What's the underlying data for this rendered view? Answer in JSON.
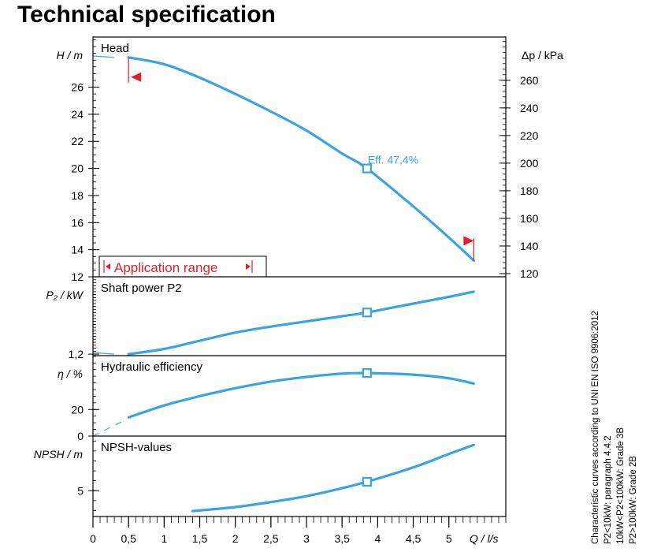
{
  "page": {
    "title": "Technical specification"
  },
  "notes": {
    "lines": [
      "Characteristic curves according to UNI EN ISO 9906:2012",
      "P2<10kW:  paragraph 4.4.2",
      "10kW<P2<100kW: Grade 3B",
      "P2>100kW: Grade 2B"
    ]
  },
  "colors": {
    "curve": "#3aa3e3",
    "marker": "#e41e26",
    "frame": "#000000"
  },
  "chart_data": {
    "type": "line",
    "x_axis": {
      "label": "Q / l/s",
      "range": [
        0,
        5.8
      ],
      "ticks": [
        0,
        0.5,
        1,
        1.5,
        2,
        2.5,
        3,
        3.5,
        4,
        4.5,
        5
      ],
      "tick_labels": [
        "0",
        "0,5",
        "1",
        "1,5",
        "2",
        "2,5",
        "3",
        "3,5",
        "4",
        "4,5",
        "5"
      ]
    },
    "duty_point": {
      "q": 3.85
    },
    "panels": [
      {
        "id": "head",
        "title": "Head",
        "ylabel": "H / m",
        "ylim": [
          12,
          29.7
        ],
        "yticks": [
          12,
          14,
          16,
          18,
          20,
          22,
          24,
          26
        ],
        "right_axis": {
          "label": "Δp / kPa",
          "range": [
            117.7,
            291.3
          ],
          "ticks": [
            120,
            140,
            160,
            180,
            200,
            220,
            240,
            260
          ]
        },
        "series": {
          "x": [
            0.5,
            1.0,
            1.5,
            2.0,
            2.5,
            3.0,
            3.5,
            3.85,
            4.5,
            5.0,
            5.35
          ],
          "y": [
            28.2,
            27.7,
            26.7,
            25.5,
            24.2,
            22.8,
            21.1,
            20.0,
            17.2,
            14.9,
            13.2
          ]
        },
        "lead_in": {
          "x": [
            0,
            0.3
          ],
          "y": [
            28.3,
            28.2
          ]
        },
        "duty_label": "Eff.  47,4%",
        "application_range": {
          "label": "Application range",
          "q_min": 0.5,
          "q_max": 5.35
        }
      },
      {
        "id": "power",
        "title": "Shaft power P2",
        "ylabel": "P₂ / kW",
        "ylim": [
          1.19,
          1.72
        ],
        "yticks": [
          1.2
        ],
        "ytick_labels": [
          "1,2"
        ],
        "series": {
          "x": [
            0.5,
            1.0,
            1.5,
            2.0,
            2.5,
            3.0,
            3.5,
            3.85,
            4.5,
            5.0,
            5.35
          ],
          "y": [
            1.2,
            1.235,
            1.29,
            1.345,
            1.385,
            1.42,
            1.455,
            1.48,
            1.54,
            1.585,
            1.62
          ]
        },
        "lead_in": {
          "x": [
            0,
            0.3
          ],
          "y": [
            1.21,
            1.2
          ]
        }
      },
      {
        "id": "efficiency",
        "title": "Hydraulic efficiency",
        "ylabel": "η / %",
        "ylim": [
          0,
          60.5
        ],
        "yticks": [
          0,
          20
        ],
        "series": {
          "x": [
            0.5,
            1.0,
            1.5,
            2.0,
            2.5,
            3.0,
            3.5,
            3.85,
            4.5,
            5.0,
            5.35
          ],
          "y": [
            14,
            23,
            30,
            36,
            41,
            44.5,
            47,
            47.4,
            46.2,
            43.5,
            39.5
          ]
        },
        "lead_in": {
          "x": [
            0,
            0.45
          ],
          "y": [
            0,
            12
          ]
        }
      },
      {
        "id": "npsh",
        "title": "NPSH-values",
        "ylabel": "NPSH / m",
        "ylim": [
          2.4,
          10.5
        ],
        "yticks": [
          5
        ],
        "series": {
          "x": [
            1.4,
            2.0,
            2.5,
            3.0,
            3.5,
            3.85,
            4.5,
            5.0,
            5.35
          ],
          "y": [
            2.95,
            3.35,
            3.85,
            4.45,
            5.25,
            5.9,
            7.35,
            8.7,
            9.6
          ]
        }
      }
    ]
  }
}
